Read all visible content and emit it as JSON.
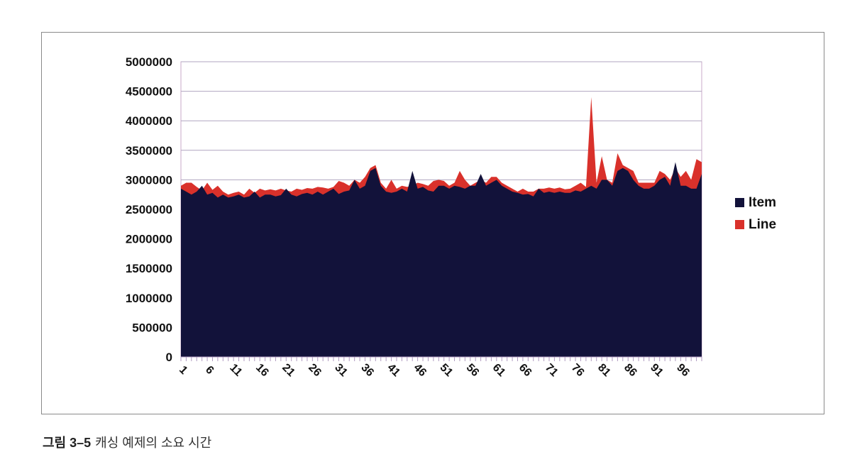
{
  "chart_data": {
    "type": "area",
    "title": "",
    "xlabel": "",
    "ylabel": "",
    "ylim": [
      0,
      5000000
    ],
    "y_ticks": [
      "5000000",
      "4500000",
      "4000000",
      "3500000",
      "3000000",
      "2500000",
      "2000000",
      "1500000",
      "1000000",
      "500000",
      "0"
    ],
    "x_tick_labels": [
      "1",
      "6",
      "11",
      "16",
      "21",
      "26",
      "31",
      "36",
      "41",
      "46",
      "51",
      "56",
      "61",
      "66",
      "71",
      "76",
      "81",
      "86",
      "91",
      "96"
    ],
    "grid": "horizontal",
    "legend_position": "right",
    "x": [
      1,
      2,
      3,
      4,
      5,
      6,
      7,
      8,
      9,
      10,
      11,
      12,
      13,
      14,
      15,
      16,
      17,
      18,
      19,
      20,
      21,
      22,
      23,
      24,
      25,
      26,
      27,
      28,
      29,
      30,
      31,
      32,
      33,
      34,
      35,
      36,
      37,
      38,
      39,
      40,
      41,
      42,
      43,
      44,
      45,
      46,
      47,
      48,
      49,
      50,
      51,
      52,
      53,
      54,
      55,
      56,
      57,
      58,
      59,
      60,
      61,
      62,
      63,
      64,
      65,
      66,
      67,
      68,
      69,
      70,
      71,
      72,
      73,
      74,
      75,
      76,
      77,
      78,
      79,
      80,
      81,
      82,
      83,
      84,
      85,
      86,
      87,
      88,
      89,
      90,
      91,
      92,
      93,
      94,
      95,
      96,
      97,
      98,
      99,
      100
    ],
    "series": [
      {
        "name": "Item",
        "color": "#12123a",
        "values": [
          2850000,
          2800000,
          2750000,
          2800000,
          2900000,
          2750000,
          2780000,
          2700000,
          2750000,
          2700000,
          2720000,
          2750000,
          2700000,
          2720000,
          2800000,
          2700000,
          2750000,
          2750000,
          2720000,
          2740000,
          2850000,
          2750000,
          2720000,
          2760000,
          2780000,
          2750000,
          2800000,
          2750000,
          2800000,
          2850000,
          2760000,
          2800000,
          2820000,
          3000000,
          2850000,
          2900000,
          3150000,
          3200000,
          2900000,
          2800000,
          2780000,
          2800000,
          2850000,
          2800000,
          3150000,
          2850000,
          2880000,
          2820000,
          2800000,
          2900000,
          2900000,
          2850000,
          2900000,
          2880000,
          2850000,
          2900000,
          2900000,
          3100000,
          2900000,
          2950000,
          3000000,
          2900000,
          2850000,
          2800000,
          2780000,
          2750000,
          2760000,
          2720000,
          2850000,
          2780000,
          2800000,
          2780000,
          2800000,
          2780000,
          2780000,
          2820000,
          2800000,
          2850000,
          2900000,
          2850000,
          3000000,
          3000000,
          2900000,
          3150000,
          3200000,
          3150000,
          3000000,
          2900000,
          2850000,
          2850000,
          2900000,
          3000000,
          3050000,
          2900000,
          3300000,
          2900000,
          2900000,
          2850000,
          2850000,
          3100000
        ]
      },
      {
        "name": "Line",
        "color": "#d9312b",
        "values": [
          2900000,
          2950000,
          2950000,
          2880000,
          2820000,
          2950000,
          2830000,
          2900000,
          2800000,
          2750000,
          2780000,
          2800000,
          2750000,
          2850000,
          2780000,
          2850000,
          2820000,
          2840000,
          2820000,
          2850000,
          2820000,
          2800000,
          2850000,
          2830000,
          2860000,
          2850000,
          2880000,
          2870000,
          2850000,
          2880000,
          2980000,
          2950000,
          2900000,
          3000000,
          2950000,
          3050000,
          3200000,
          3250000,
          2950000,
          2850000,
          3000000,
          2850000,
          2900000,
          2880000,
          2900000,
          2950000,
          2930000,
          2900000,
          2980000,
          3000000,
          2980000,
          2900000,
          2950000,
          3150000,
          3000000,
          2900000,
          2950000,
          3000000,
          2950000,
          3050000,
          3050000,
          2950000,
          2900000,
          2850000,
          2800000,
          2850000,
          2800000,
          2800000,
          2850000,
          2850000,
          2870000,
          2850000,
          2870000,
          2840000,
          2850000,
          2900000,
          2950000,
          2880000,
          4400000,
          2950000,
          3400000,
          3000000,
          2950000,
          3450000,
          3250000,
          3200000,
          3150000,
          2950000,
          2950000,
          2950000,
          2950000,
          3150000,
          3100000,
          3000000,
          3200000,
          3050000,
          3150000,
          3000000,
          3350000,
          3300000
        ]
      }
    ]
  },
  "caption": {
    "label": "그림 3–5",
    "text": "캐싱 예제의 소요 시간"
  }
}
